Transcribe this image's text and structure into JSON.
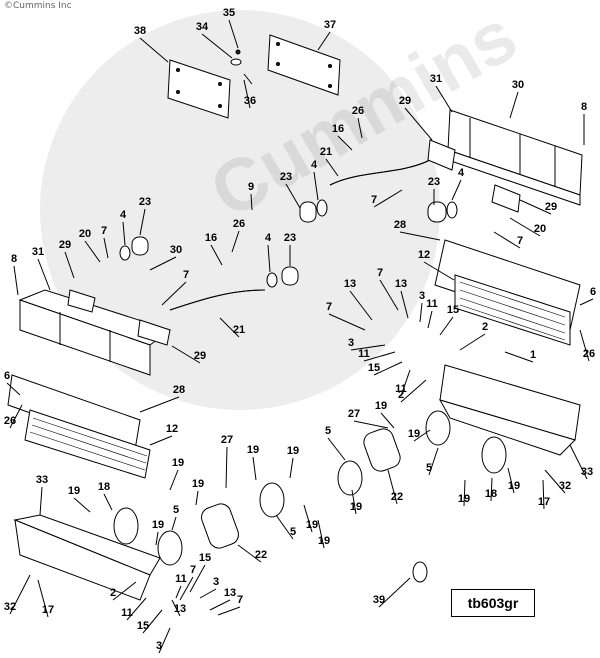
{
  "copyright": "©Cummins Inc",
  "figure_tag": "tb603gr",
  "watermark_text": "Cummins",
  "callouts": [
    {
      "id": "c1",
      "label": "38"
    },
    {
      "id": "c2",
      "label": "34"
    },
    {
      "id": "c3",
      "label": "35"
    },
    {
      "id": "c4",
      "label": "37"
    },
    {
      "id": "c5",
      "label": "36"
    },
    {
      "id": "c6",
      "label": "31"
    },
    {
      "id": "c7",
      "label": "30"
    },
    {
      "id": "c8",
      "label": "8"
    },
    {
      "id": "c9",
      "label": "29"
    },
    {
      "id": "c10",
      "label": "26"
    },
    {
      "id": "c11",
      "label": "16"
    },
    {
      "id": "c12",
      "label": "21"
    },
    {
      "id": "c13",
      "label": "4"
    },
    {
      "id": "c14",
      "label": "23"
    },
    {
      "id": "c15",
      "label": "7"
    },
    {
      "id": "c16",
      "label": "23"
    },
    {
      "id": "c17",
      "label": "4"
    },
    {
      "id": "c18",
      "label": "29"
    },
    {
      "id": "c19",
      "label": "20"
    },
    {
      "id": "c20",
      "label": "7"
    },
    {
      "id": "c21",
      "label": "28"
    },
    {
      "id": "c22",
      "label": "9"
    },
    {
      "id": "c23",
      "label": "23"
    },
    {
      "id": "c24",
      "label": "4"
    },
    {
      "id": "c25",
      "label": "26"
    },
    {
      "id": "c26",
      "label": "20"
    },
    {
      "id": "c27",
      "label": "7"
    },
    {
      "id": "c28",
      "label": "29"
    },
    {
      "id": "c29",
      "label": "31"
    },
    {
      "id": "c30",
      "label": "30"
    },
    {
      "id": "c31",
      "label": "16"
    },
    {
      "id": "c32",
      "label": "4"
    },
    {
      "id": "c33",
      "label": "23"
    },
    {
      "id": "c34",
      "label": "8"
    },
    {
      "id": "c35",
      "label": "7"
    },
    {
      "id": "c36",
      "label": "21"
    },
    {
      "id": "c37",
      "label": "29"
    },
    {
      "id": "c38",
      "label": "12"
    },
    {
      "id": "c39",
      "label": "6"
    },
    {
      "id": "c40",
      "label": "13"
    },
    {
      "id": "c41",
      "label": "7"
    },
    {
      "id": "c42",
      "label": "13"
    },
    {
      "id": "c43",
      "label": "3"
    },
    {
      "id": "c44",
      "label": "11"
    },
    {
      "id": "c45",
      "label": "15"
    },
    {
      "id": "c46",
      "label": "7"
    },
    {
      "id": "c47",
      "label": "2"
    },
    {
      "id": "c48",
      "label": "26"
    },
    {
      "id": "c49",
      "label": "1"
    },
    {
      "id": "c50",
      "label": "3"
    },
    {
      "id": "c51",
      "label": "11"
    },
    {
      "id": "c52",
      "label": "15"
    },
    {
      "id": "c53",
      "label": "11"
    },
    {
      "id": "c54",
      "label": "2"
    },
    {
      "id": "c55",
      "label": "6"
    },
    {
      "id": "c56",
      "label": "28"
    },
    {
      "id": "c57",
      "label": "26"
    },
    {
      "id": "c58",
      "label": "12"
    },
    {
      "id": "c59",
      "label": "27"
    },
    {
      "id": "c60",
      "label": "19"
    },
    {
      "id": "c61",
      "label": "5"
    },
    {
      "id": "c62",
      "label": "19"
    },
    {
      "id": "c63",
      "label": "33"
    },
    {
      "id": "c64",
      "label": "32"
    },
    {
      "id": "c65",
      "label": "17"
    },
    {
      "id": "c66",
      "label": "19"
    },
    {
      "id": "c67",
      "label": "18"
    },
    {
      "id": "c68",
      "label": "19"
    },
    {
      "id": "c69",
      "label": "5"
    },
    {
      "id": "c70",
      "label": "22"
    },
    {
      "id": "c71",
      "label": "19"
    },
    {
      "id": "c72",
      "label": "27"
    },
    {
      "id": "c73",
      "label": "19"
    },
    {
      "id": "c74",
      "label": "19"
    },
    {
      "id": "c75",
      "label": "33"
    },
    {
      "id": "c76",
      "label": "19"
    },
    {
      "id": "c77",
      "label": "18"
    },
    {
      "id": "c78",
      "label": "19"
    },
    {
      "id": "c79",
      "label": "19"
    },
    {
      "id": "c80",
      "label": "5"
    },
    {
      "id": "c81",
      "label": "22"
    },
    {
      "id": "c82",
      "label": "5"
    },
    {
      "id": "c83",
      "label": "19"
    },
    {
      "id": "c84",
      "label": "19"
    },
    {
      "id": "c85",
      "label": "19"
    },
    {
      "id": "c86",
      "label": "32"
    },
    {
      "id": "c87",
      "label": "17"
    },
    {
      "id": "c88",
      "label": "2"
    },
    {
      "id": "c89",
      "label": "11"
    },
    {
      "id": "c90",
      "label": "15"
    },
    {
      "id": "c91",
      "label": "3"
    },
    {
      "id": "c92",
      "label": "13"
    },
    {
      "id": "c93",
      "label": "7"
    },
    {
      "id": "c94",
      "label": "11"
    },
    {
      "id": "c95",
      "label": "15"
    },
    {
      "id": "c96",
      "label": "3"
    },
    {
      "id": "c97",
      "label": "13"
    },
    {
      "id": "c98",
      "label": "7"
    },
    {
      "id": "c99",
      "label": "39"
    }
  ]
}
